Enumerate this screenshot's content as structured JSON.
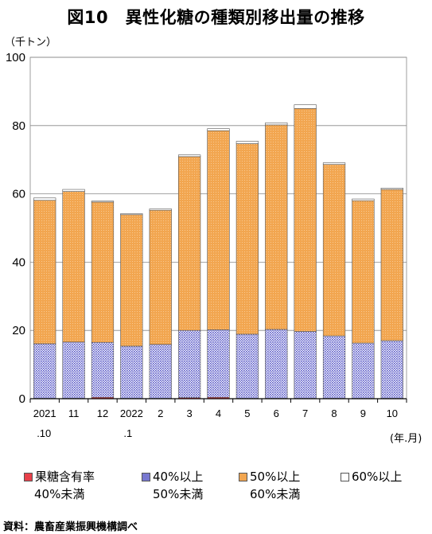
{
  "title": "図10　異性化糖の種類別移出量の推移",
  "unit_label": "（千トン）",
  "x_unit_label": "(年.月)",
  "source": "資料：農畜産業振興機構調べ",
  "colors": {
    "s1": "#e8404a",
    "s2": "#8a8ad8",
    "s3": "#f2a650",
    "s4": "#ffffff"
  },
  "legend": [
    {
      "line1": "果糖含有率",
      "line2": "40%未満"
    },
    {
      "line1": "40%以上",
      "line2": "50%未満"
    },
    {
      "line1": "50%以上",
      "line2": "60%未満"
    },
    {
      "line1": "60%以上",
      "line2": ""
    }
  ],
  "chart_data": {
    "type": "stacked-bar",
    "categories": [
      "2021.10",
      "11",
      "12",
      "2022.1",
      "2",
      "3",
      "4",
      "5",
      "6",
      "7",
      "8",
      "9",
      "10"
    ],
    "x_tick_lines": [
      [
        "2021",
        ".10"
      ],
      [
        "11",
        ""
      ],
      [
        "12",
        ""
      ],
      [
        "2022",
        ".1"
      ],
      [
        "2",
        ""
      ],
      [
        "3",
        ""
      ],
      [
        "4",
        ""
      ],
      [
        "5",
        ""
      ],
      [
        "6",
        ""
      ],
      [
        "7",
        ""
      ],
      [
        "8",
        ""
      ],
      [
        "9",
        ""
      ],
      [
        "10",
        ""
      ]
    ],
    "ylim": [
      0,
      100
    ],
    "yticks": [
      "0",
      "20",
      "40",
      "60",
      "80",
      "100"
    ],
    "grid": true,
    "legend_position": "bottom",
    "series": [
      {
        "name": "果糖含有率40%未満",
        "values": [
          0.1,
          0.1,
          0.4,
          0.1,
          0.1,
          0.3,
          0.4,
          0.1,
          0.1,
          0.1,
          0.1,
          0.1,
          0.1
        ]
      },
      {
        "name": "40%以上50%未満",
        "values": [
          16.0,
          16.5,
          16.1,
          15.3,
          15.8,
          19.7,
          19.8,
          18.8,
          20.2,
          19.6,
          18.3,
          16.2,
          16.9
        ]
      },
      {
        "name": "50%以上60%未満",
        "values": [
          42.0,
          44.1,
          41.1,
          38.5,
          39.3,
          50.9,
          58.3,
          55.8,
          59.9,
          65.3,
          50.2,
          41.7,
          44.3
        ]
      },
      {
        "name": "60%以上",
        "values": [
          0.7,
          0.6,
          0.3,
          0.3,
          0.4,
          0.5,
          0.6,
          0.7,
          0.6,
          1.1,
          0.5,
          0.5,
          0.4
        ]
      }
    ]
  }
}
